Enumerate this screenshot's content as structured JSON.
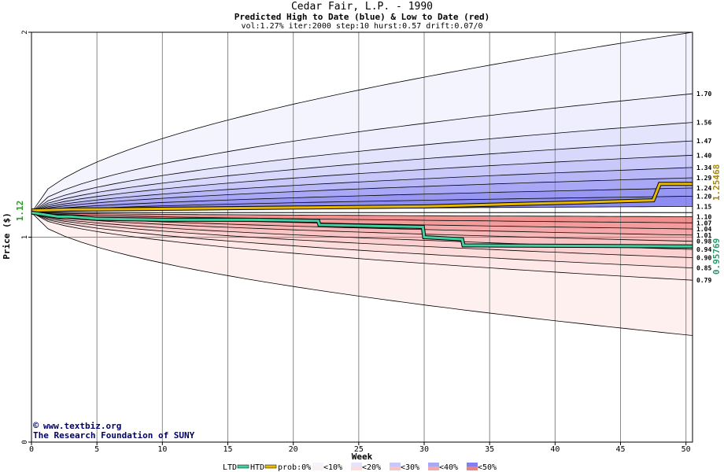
{
  "chart_data": {
    "type": "area",
    "title": "Cedar Fair, L.P. - 1990",
    "subtitle": "Predicted High to Date (blue) &  Low to Date (red)",
    "params": "vol:1.27% iter:2000 step:10 hurst:0.57 drift:0.07/0",
    "xlabel": "Week",
    "ylabel": "Price ($)",
    "xlim": [
      0,
      50.5
    ],
    "ylim": [
      0,
      2
    ],
    "x_ticks": [
      0,
      5,
      10,
      15,
      20,
      25,
      30,
      35,
      40,
      45,
      50
    ],
    "y_ticks": [
      0,
      1,
      2
    ],
    "grid": true,
    "start_price": 1.12,
    "start_price_label": "1.12",
    "right_markers": [
      {
        "label": "1.25468",
        "value": 1.25468,
        "color": "#aa8800"
      },
      {
        "label": "0.95769",
        "value": 0.95769,
        "color": "#2a9a6a"
      }
    ],
    "high_quantile_labels": [
      "1.70",
      "1.56",
      "1.47",
      "1.40",
      "1.34",
      "1.29",
      "1.24",
      "1.20",
      "1.15"
    ],
    "high_quantile_values": [
      1.7,
      1.56,
      1.47,
      1.4,
      1.34,
      1.29,
      1.24,
      1.2,
      1.15
    ],
    "low_quantile_labels": [
      "1.10",
      "1.07",
      "1.04",
      "1.01",
      "0.98",
      "0.94",
      "0.90",
      "0.85",
      "0.79"
    ],
    "low_quantile_values": [
      1.1,
      1.07,
      1.04,
      1.01,
      0.98,
      0.94,
      0.9,
      0.85,
      0.79
    ],
    "outer_envelope": {
      "high_end": 2.0,
      "low_end": 0.52
    },
    "series": [
      {
        "name": "HTD",
        "color": "#e6b800",
        "x": [
          0,
          3,
          8,
          13,
          21,
          30,
          36,
          42,
          47.5,
          48,
          50.5
        ],
        "y": [
          1.13,
          1.135,
          1.137,
          1.14,
          1.145,
          1.15,
          1.16,
          1.17,
          1.18,
          1.26,
          1.26
        ]
      },
      {
        "name": "LTD",
        "color": "#40d0a0",
        "x": [
          0,
          2,
          3,
          5,
          10,
          12,
          17,
          21.9,
          22,
          29.9,
          30,
          32.9,
          33,
          50.5
        ],
        "y": [
          1.12,
          1.1,
          1.1,
          1.09,
          1.085,
          1.085,
          1.085,
          1.08,
          1.06,
          1.05,
          1.0,
          0.99,
          0.96,
          0.955
        ]
      }
    ],
    "legend": {
      "ltd": "LTD",
      "htd": "HTD",
      "prob_prefix": "prob:0%",
      "bins": [
        "<10%",
        "<20%",
        "<30%",
        "<40%",
        "<50%"
      ],
      "placement": "bottom"
    },
    "watermark_line1": "www.textbiz.org",
    "watermark_line2": "The Research Foundation of SUNY"
  }
}
